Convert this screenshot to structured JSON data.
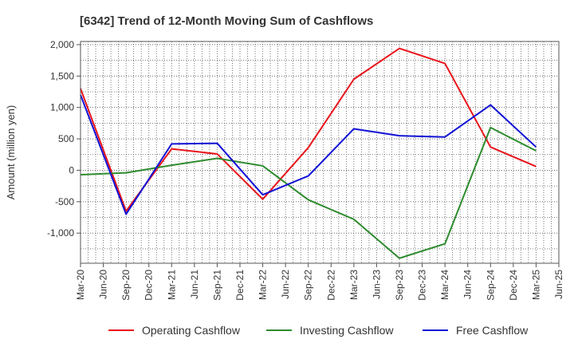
{
  "chart_data": {
    "type": "line",
    "title": "[6342]  Trend of 12-Month Moving Sum of Cashflows",
    "ylabel": "Amount (million yen)",
    "xlabel": "",
    "ylim": [
      -1480,
      2050
    ],
    "yticks": [
      {
        "value": 2000,
        "label": "2,000"
      },
      {
        "value": 1500,
        "label": "1,500"
      },
      {
        "value": 1000,
        "label": "1,000"
      },
      {
        "value": 500,
        "label": "500"
      },
      {
        "value": 0,
        "label": "0"
      },
      {
        "value": -500,
        "label": "-500"
      },
      {
        "value": -1000,
        "label": "-1,000"
      }
    ],
    "x_labels": [
      "Mar-20",
      "Jun-20",
      "Sep-20",
      "Dec-20",
      "Mar-21",
      "Jun-21",
      "Sep-21",
      "Dec-21",
      "Mar-22",
      "Jun-22",
      "Sep-22",
      "Dec-22",
      "Mar-23",
      "Jun-23",
      "Sep-23",
      "Dec-23",
      "Mar-24",
      "Jun-24",
      "Sep-24",
      "Dec-24",
      "Mar-25",
      "Jun-25"
    ],
    "categories": [
      "Mar-20",
      "Sep-20",
      "Mar-21",
      "Sep-21",
      "Mar-22",
      "Sep-22",
      "Mar-23",
      "Sep-23",
      "Mar-24",
      "Sep-24",
      "Mar-25"
    ],
    "grid": true,
    "legend_position": "bottom",
    "series": [
      {
        "name": "Operating Cashflow",
        "color": "#e8141a",
        "values": [
          1300,
          -650,
          340,
          260,
          -460,
          360,
          1450,
          1940,
          1700,
          370,
          60
        ]
      },
      {
        "name": "Investing Cashflow",
        "color": "#2e8b2e",
        "values": [
          -70,
          -40,
          80,
          190,
          70,
          -470,
          -780,
          -1400,
          -1170,
          680,
          310
        ]
      },
      {
        "name": "Free Cashflow",
        "color": "#1212d6",
        "values": [
          1200,
          -700,
          420,
          430,
          -390,
          -90,
          660,
          550,
          530,
          1040,
          370
        ]
      }
    ]
  }
}
